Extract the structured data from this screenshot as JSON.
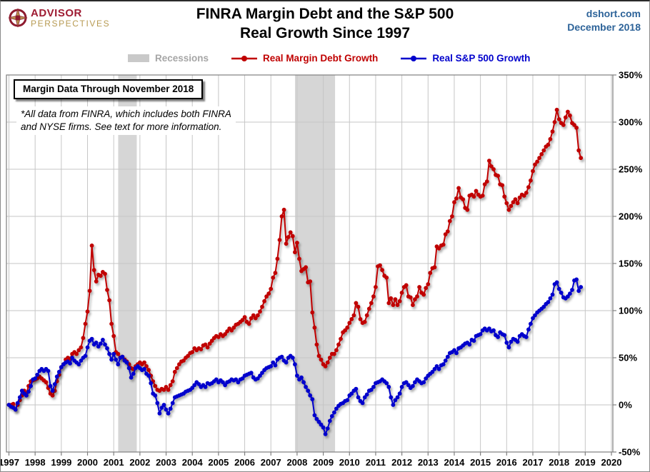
{
  "branding": {
    "advisor": "ADVISOR",
    "perspectives": "PERSPECTIVES"
  },
  "header": {
    "title_line1": "FINRA Margin Debt and the S&P 500",
    "title_line2": "Real Growth Since 1997",
    "source": "dshort.com",
    "date": "December 2018"
  },
  "legend": {
    "recessions": "Recessions",
    "margin_debt": "Real Margin Debt Growth",
    "sp500": "Real S&P 500 Growth"
  },
  "annotation": {
    "box_text": "Margin Data Through November 2018",
    "note_line1": "*All data from FINRA, which includes both FINRA",
    "note_line2": "and NYSE firms. See text for more information."
  },
  "chart_data": {
    "type": "line",
    "title": "FINRA Margin Debt and the S&P 500 Real Growth Since 1997",
    "x_start": {
      "year": 1997,
      "month": 1
    },
    "x_step_months": 1,
    "x_end": {
      "year": 2018,
      "month": 11
    },
    "x_axis": {
      "tick_years": [
        1997,
        1998,
        1999,
        2000,
        2001,
        2002,
        2003,
        2004,
        2005,
        2006,
        2007,
        2008,
        2009,
        2010,
        2011,
        2012,
        2013,
        2014,
        2015,
        2016,
        2017,
        2018,
        2019,
        2020
      ]
    },
    "y_axis": {
      "min": -50,
      "max": 350,
      "tick_step": 50,
      "tick_labels": [
        "350%",
        "300%",
        "250%",
        "200%",
        "150%",
        "100%",
        "50%",
        "0%",
        "-50%"
      ]
    },
    "grid": true,
    "legend_position": "top",
    "recessions": [
      {
        "start": 2001.17,
        "end": 2001.88
      },
      {
        "start": 2007.92,
        "end": 2009.45
      }
    ],
    "colors": {
      "margin_debt": "#C00000",
      "sp500": "#0000CC",
      "recession_band": "#D6D6D6",
      "gridline": "#C6C6C6",
      "axis": "#7F7F7F",
      "source_text": "#2D6399",
      "recession_legend_text": "#A6A6A6"
    },
    "series": [
      {
        "name": "Real Margin Debt Growth",
        "color": "#C00000",
        "values": [
          0,
          0,
          1,
          -5,
          0,
          5,
          10,
          15,
          12,
          20,
          25,
          26,
          27,
          28,
          30,
          28,
          26,
          24,
          18,
          12,
          10,
          15,
          25,
          32,
          40,
          43,
          48,
          50,
          49,
          54,
          56,
          54,
          58,
          61,
          71,
          86,
          99,
          121,
          169,
          143,
          131,
          138,
          137,
          141,
          139,
          122,
          111,
          86,
          73,
          56,
          54,
          50,
          51,
          48,
          46,
          43,
          39,
          38,
          41,
          43,
          45,
          43,
          45,
          41,
          37,
          31,
          25,
          20,
          16,
          15,
          17,
          16,
          19,
          16,
          21,
          25,
          35,
          39,
          43,
          46,
          47,
          50,
          52,
          55,
          56,
          60,
          58,
          60,
          59,
          63,
          64,
          61,
          65,
          68,
          71,
          73,
          72,
          75,
          73,
          75,
          78,
          81,
          79,
          82,
          85,
          86,
          88,
          90,
          93,
          88,
          86,
          92,
          95,
          92,
          95,
          99,
          104,
          110,
          115,
          118,
          123,
          135,
          140,
          155,
          175,
          200,
          207,
          171,
          178,
          183,
          179,
          162,
          172,
          155,
          142,
          144,
          146,
          130,
          131,
          98,
          82,
          64,
          52,
          48,
          43,
          41,
          45,
          50,
          54,
          54,
          58,
          64,
          70,
          77,
          79,
          82,
          87,
          91,
          95,
          108,
          104,
          91,
          87,
          88,
          95,
          102,
          108,
          115,
          125,
          147,
          148,
          143,
          137,
          135,
          108,
          113,
          106,
          112,
          106,
          110,
          119,
          125,
          127,
          115,
          114,
          106,
          112,
          115,
          125,
          119,
          117,
          124,
          128,
          140,
          145,
          146,
          168,
          166,
          169,
          170,
          181,
          184,
          195,
          200,
          215,
          219,
          230,
          220,
          218,
          209,
          207,
          222,
          223,
          221,
          227,
          223,
          221,
          222,
          234,
          237,
          259,
          253,
          250,
          244,
          243,
          234,
          233,
          221,
          214,
          207,
          211,
          215,
          218,
          214,
          220,
          223,
          222,
          225,
          231,
          238,
          248,
          255,
          258,
          262,
          266,
          270,
          274,
          276,
          282,
          290,
          300,
          313,
          303,
          299,
          297,
          305,
          311,
          307,
          299,
          297,
          294,
          270,
          262
        ]
      },
      {
        "name": "Real S&P 500 Growth",
        "color": "#0000CC",
        "values": [
          0,
          -2,
          -3,
          -5,
          2,
          8,
          15,
          12,
          10,
          14,
          20,
          27,
          28,
          32,
          36,
          38,
          36,
          38,
          36,
          20,
          15,
          22,
          30,
          35,
          40,
          43,
          45,
          46,
          44,
          50,
          47,
          45,
          43,
          47,
          50,
          52,
          61,
          68,
          70,
          64,
          66,
          62,
          65,
          69,
          64,
          60,
          54,
          48,
          54,
          48,
          43,
          50,
          51,
          47,
          45,
          39,
          29,
          33,
          39,
          41,
          39,
          37,
          38,
          33,
          31,
          23,
          12,
          10,
          2,
          -9,
          -3,
          0,
          -5,
          -9,
          -4,
          2,
          8,
          9,
          10,
          11,
          12,
          14,
          15,
          16,
          18,
          21,
          24,
          22,
          19,
          21,
          19,
          23,
          22,
          23,
          25,
          27,
          24,
          26,
          24,
          21,
          24,
          25,
          27,
          26,
          27,
          24,
          27,
          28,
          31,
          32,
          33,
          34,
          29,
          27,
          28,
          31,
          34,
          37,
          39,
          40,
          41,
          45,
          42,
          48,
          50,
          51,
          47,
          45,
          50,
          52,
          50,
          43,
          31,
          27,
          29,
          24,
          19,
          15,
          10,
          6,
          -11,
          -15,
          -18,
          -21,
          -24,
          -31,
          -25,
          -17,
          -12,
          -8,
          -4,
          -1,
          1,
          2,
          4,
          5,
          10,
          12,
          15,
          17,
          8,
          4,
          2,
          8,
          11,
          15,
          16,
          19,
          23,
          24,
          25,
          27,
          25,
          23,
          19,
          8,
          0,
          5,
          8,
          12,
          19,
          23,
          24,
          21,
          18,
          20,
          24,
          27,
          25,
          23,
          24,
          28,
          31,
          33,
          35,
          38,
          41,
          38,
          42,
          43,
          47,
          51,
          55,
          56,
          58,
          55,
          60,
          61,
          63,
          65,
          66,
          64,
          69,
          68,
          73,
          74,
          75,
          79,
          81,
          79,
          81,
          78,
          79,
          74,
          72,
          77,
          75,
          74,
          66,
          61,
          67,
          70,
          69,
          67,
          73,
          75,
          73,
          72,
          80,
          86,
          92,
          95,
          98,
          100,
          102,
          104,
          107,
          109,
          113,
          117,
          128,
          130,
          123,
          119,
          114,
          113,
          115,
          118,
          122,
          132,
          133,
          121,
          125
        ]
      }
    ]
  }
}
